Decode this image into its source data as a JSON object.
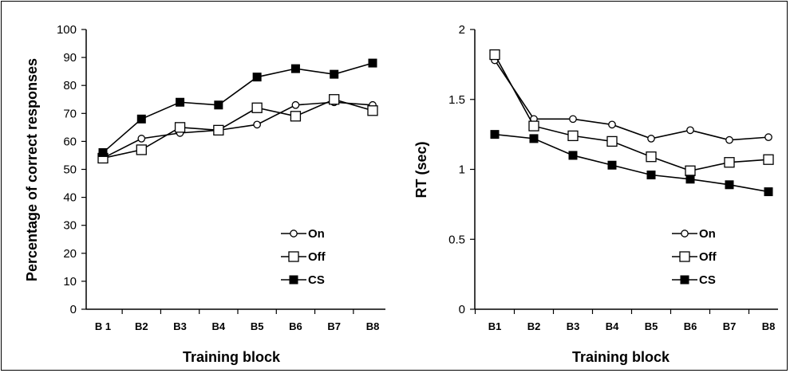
{
  "chart_data": [
    {
      "type": "line",
      "ylabel": "Percentage of correct responses",
      "xlabel": "Training block",
      "categories": [
        "B 1",
        "B2",
        "B3",
        "B4",
        "B5",
        "B6",
        "B7",
        "B8"
      ],
      "ylim": [
        0,
        100
      ],
      "yticks": [
        "0",
        "10",
        "20",
        "30",
        "40",
        "50",
        "60",
        "70",
        "80",
        "90",
        "100"
      ],
      "series": [
        {
          "name": "On",
          "marker": "open-circle",
          "values": [
            54,
            61,
            63,
            64,
            66,
            73,
            74,
            73
          ]
        },
        {
          "name": "Off",
          "marker": "open-square",
          "values": [
            54,
            57,
            65,
            64,
            72,
            69,
            75,
            71
          ]
        },
        {
          "name": "CS",
          "marker": "filled-square",
          "values": [
            56,
            68,
            74,
            73,
            83,
            86,
            84,
            88
          ]
        }
      ],
      "legend": "center-right"
    },
    {
      "type": "line",
      "ylabel": "RT (sec)",
      "xlabel": "Training block",
      "categories": [
        "B1",
        "B2",
        "B3",
        "B4",
        "B5",
        "B6",
        "B7",
        "B8"
      ],
      "ylim": [
        0,
        2
      ],
      "yticks": [
        "0",
        "0.5",
        "1",
        "1.5",
        "2"
      ],
      "series": [
        {
          "name": "On",
          "marker": "open-circle",
          "values": [
            1.78,
            1.36,
            1.36,
            1.32,
            1.22,
            1.28,
            1.21,
            1.23
          ]
        },
        {
          "name": "Off",
          "marker": "open-square",
          "values": [
            1.82,
            1.31,
            1.24,
            1.2,
            1.09,
            0.99,
            1.05,
            1.07
          ]
        },
        {
          "name": "CS",
          "marker": "filled-square",
          "values": [
            1.25,
            1.22,
            1.1,
            1.03,
            0.96,
            0.93,
            0.89,
            0.84
          ]
        }
      ],
      "legend": "center-right"
    }
  ]
}
